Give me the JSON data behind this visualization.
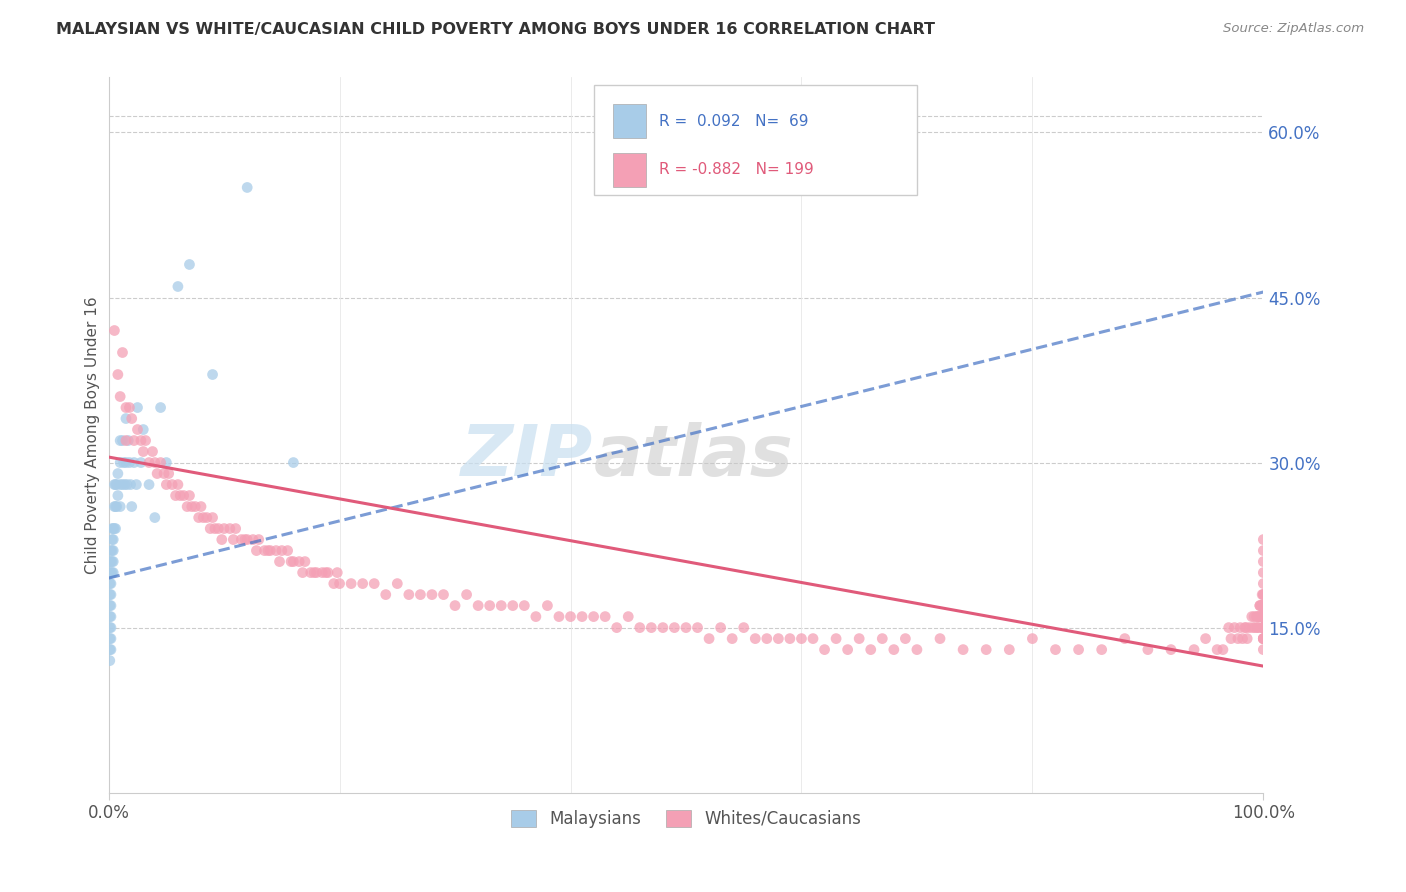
{
  "title": "MALAYSIAN VS WHITE/CAUCASIAN CHILD POVERTY AMONG BOYS UNDER 16 CORRELATION CHART",
  "source": "Source: ZipAtlas.com",
  "ylabel": "Child Poverty Among Boys Under 16",
  "background_color": "#ffffff",
  "grid_color": "#cccccc",
  "watermark_zip": "ZIP",
  "watermark_atlas": "atlas",
  "blue_color": "#a8cce8",
  "pink_color": "#f4a0b5",
  "blue_line_color": "#4472c4",
  "pink_line_color": "#e05a7a",
  "right_yticks": [
    0.15,
    0.3,
    0.45,
    0.6
  ],
  "right_ytick_labels": [
    "15.0%",
    "30.0%",
    "45.0%",
    "60.0%"
  ],
  "ylim": [
    0.0,
    0.65
  ],
  "xlim": [
    0.0,
    1.0
  ],
  "blue_line_x0": 0.0,
  "blue_line_y0": 0.195,
  "blue_line_x1": 1.0,
  "blue_line_y1": 0.455,
  "pink_line_x0": 0.0,
  "pink_line_y0": 0.305,
  "pink_line_x1": 1.0,
  "pink_line_y1": 0.115,
  "malaysian_x": [
    0.001,
    0.001,
    0.001,
    0.001,
    0.001,
    0.001,
    0.001,
    0.001,
    0.001,
    0.001,
    0.002,
    0.002,
    0.002,
    0.002,
    0.002,
    0.002,
    0.002,
    0.002,
    0.002,
    0.002,
    0.003,
    0.003,
    0.003,
    0.003,
    0.003,
    0.004,
    0.004,
    0.004,
    0.004,
    0.004,
    0.005,
    0.005,
    0.005,
    0.006,
    0.006,
    0.006,
    0.007,
    0.007,
    0.008,
    0.008,
    0.01,
    0.01,
    0.01,
    0.01,
    0.012,
    0.012,
    0.013,
    0.014,
    0.015,
    0.015,
    0.016,
    0.017,
    0.018,
    0.019,
    0.02,
    0.022,
    0.024,
    0.025,
    0.028,
    0.03,
    0.035,
    0.04,
    0.045,
    0.05,
    0.06,
    0.07,
    0.09,
    0.12,
    0.16
  ],
  "malaysian_y": [
    0.21,
    0.2,
    0.19,
    0.18,
    0.17,
    0.16,
    0.15,
    0.14,
    0.13,
    0.12,
    0.22,
    0.21,
    0.2,
    0.19,
    0.18,
    0.17,
    0.16,
    0.15,
    0.14,
    0.13,
    0.24,
    0.23,
    0.22,
    0.21,
    0.2,
    0.24,
    0.23,
    0.22,
    0.21,
    0.2,
    0.28,
    0.26,
    0.24,
    0.28,
    0.26,
    0.24,
    0.28,
    0.26,
    0.29,
    0.27,
    0.32,
    0.3,
    0.28,
    0.26,
    0.32,
    0.28,
    0.3,
    0.28,
    0.34,
    0.3,
    0.28,
    0.32,
    0.3,
    0.28,
    0.26,
    0.3,
    0.28,
    0.35,
    0.3,
    0.33,
    0.28,
    0.25,
    0.35,
    0.3,
    0.46,
    0.48,
    0.38,
    0.55,
    0.3
  ],
  "caucasian_x": [
    0.005,
    0.008,
    0.01,
    0.012,
    0.015,
    0.015,
    0.018,
    0.02,
    0.022,
    0.025,
    0.028,
    0.03,
    0.032,
    0.035,
    0.038,
    0.04,
    0.042,
    0.045,
    0.048,
    0.05,
    0.052,
    0.055,
    0.058,
    0.06,
    0.062,
    0.065,
    0.068,
    0.07,
    0.072,
    0.075,
    0.078,
    0.08,
    0.082,
    0.085,
    0.088,
    0.09,
    0.092,
    0.095,
    0.098,
    0.1,
    0.105,
    0.108,
    0.11,
    0.115,
    0.118,
    0.12,
    0.125,
    0.128,
    0.13,
    0.135,
    0.138,
    0.14,
    0.145,
    0.148,
    0.15,
    0.155,
    0.158,
    0.16,
    0.165,
    0.168,
    0.17,
    0.175,
    0.178,
    0.18,
    0.185,
    0.188,
    0.19,
    0.195,
    0.198,
    0.2,
    0.21,
    0.22,
    0.23,
    0.24,
    0.25,
    0.26,
    0.27,
    0.28,
    0.29,
    0.3,
    0.31,
    0.32,
    0.33,
    0.34,
    0.35,
    0.36,
    0.37,
    0.38,
    0.39,
    0.4,
    0.41,
    0.42,
    0.43,
    0.44,
    0.45,
    0.46,
    0.47,
    0.48,
    0.49,
    0.5,
    0.51,
    0.52,
    0.53,
    0.54,
    0.55,
    0.56,
    0.57,
    0.58,
    0.59,
    0.6,
    0.61,
    0.62,
    0.63,
    0.64,
    0.65,
    0.66,
    0.67,
    0.68,
    0.69,
    0.7,
    0.72,
    0.74,
    0.76,
    0.78,
    0.8,
    0.82,
    0.84,
    0.86,
    0.88,
    0.9,
    0.92,
    0.94,
    0.95,
    0.96,
    0.965,
    0.97,
    0.972,
    0.975,
    0.978,
    0.98,
    0.982,
    0.984,
    0.985,
    0.986,
    0.988,
    0.99,
    0.991,
    0.992,
    0.993,
    0.994,
    0.995,
    0.995,
    0.996,
    0.996,
    0.997,
    0.997,
    0.997,
    0.998,
    0.998,
    0.998,
    0.999,
    0.999,
    0.999,
    0.999,
    1.0,
    1.0,
    1.0,
    1.0,
    1.0,
    1.0,
    1.0,
    1.0,
    1.0,
    1.0,
    1.0,
    1.0,
    1.0,
    1.0,
    1.0,
    1.0,
    1.0,
    1.0,
    1.0,
    1.0,
    1.0,
    1.0,
    1.0,
    1.0,
    1.0,
    1.0,
    1.0,
    1.0,
    1.0,
    1.0,
    1.0,
    1.0,
    1.0,
    1.0,
    1.0,
    1.0
  ],
  "caucasian_y": [
    0.42,
    0.38,
    0.36,
    0.4,
    0.35,
    0.32,
    0.35,
    0.34,
    0.32,
    0.33,
    0.32,
    0.31,
    0.32,
    0.3,
    0.31,
    0.3,
    0.29,
    0.3,
    0.29,
    0.28,
    0.29,
    0.28,
    0.27,
    0.28,
    0.27,
    0.27,
    0.26,
    0.27,
    0.26,
    0.26,
    0.25,
    0.26,
    0.25,
    0.25,
    0.24,
    0.25,
    0.24,
    0.24,
    0.23,
    0.24,
    0.24,
    0.23,
    0.24,
    0.23,
    0.23,
    0.23,
    0.23,
    0.22,
    0.23,
    0.22,
    0.22,
    0.22,
    0.22,
    0.21,
    0.22,
    0.22,
    0.21,
    0.21,
    0.21,
    0.2,
    0.21,
    0.2,
    0.2,
    0.2,
    0.2,
    0.2,
    0.2,
    0.19,
    0.2,
    0.19,
    0.19,
    0.19,
    0.19,
    0.18,
    0.19,
    0.18,
    0.18,
    0.18,
    0.18,
    0.17,
    0.18,
    0.17,
    0.17,
    0.17,
    0.17,
    0.17,
    0.16,
    0.17,
    0.16,
    0.16,
    0.16,
    0.16,
    0.16,
    0.15,
    0.16,
    0.15,
    0.15,
    0.15,
    0.15,
    0.15,
    0.15,
    0.14,
    0.15,
    0.14,
    0.15,
    0.14,
    0.14,
    0.14,
    0.14,
    0.14,
    0.14,
    0.13,
    0.14,
    0.13,
    0.14,
    0.13,
    0.14,
    0.13,
    0.14,
    0.13,
    0.14,
    0.13,
    0.13,
    0.13,
    0.14,
    0.13,
    0.13,
    0.13,
    0.14,
    0.13,
    0.13,
    0.13,
    0.14,
    0.13,
    0.13,
    0.15,
    0.14,
    0.15,
    0.14,
    0.15,
    0.14,
    0.15,
    0.15,
    0.14,
    0.15,
    0.16,
    0.15,
    0.16,
    0.15,
    0.16,
    0.15,
    0.16,
    0.15,
    0.16,
    0.17,
    0.16,
    0.17,
    0.16,
    0.17,
    0.16,
    0.17,
    0.16,
    0.17,
    0.18,
    0.15,
    0.16,
    0.17,
    0.18,
    0.16,
    0.15,
    0.16,
    0.15,
    0.16,
    0.15,
    0.16,
    0.15,
    0.16,
    0.15,
    0.14,
    0.15,
    0.16,
    0.15,
    0.16,
    0.15,
    0.14,
    0.15,
    0.16,
    0.15,
    0.14,
    0.13,
    0.14,
    0.15,
    0.16,
    0.17,
    0.18,
    0.19,
    0.2,
    0.21,
    0.22,
    0.23
  ]
}
